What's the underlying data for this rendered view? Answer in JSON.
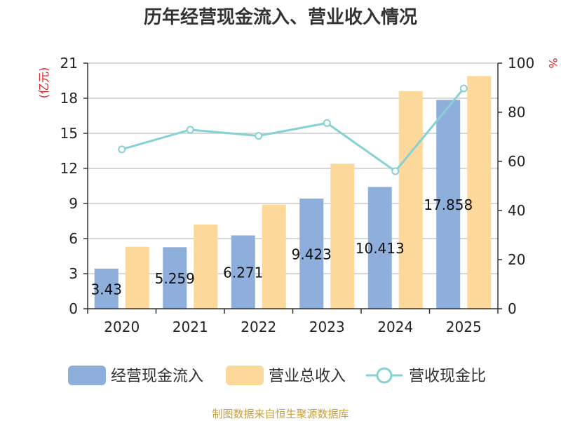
{
  "chart_data": {
    "type": "bar",
    "title": "历年经营现金流入、营业收入情况",
    "categories": [
      "2020",
      "2021",
      "2022",
      "2023",
      "2024",
      "2025"
    ],
    "y_left": {
      "unit_label": "(亿元)",
      "min": 0,
      "max": 21,
      "ticks": [
        "0",
        "3",
        "6",
        "9",
        "12",
        "15",
        "18",
        "21"
      ]
    },
    "y_right": {
      "unit_label": "%",
      "min": 0,
      "max": 100,
      "ticks": [
        "0",
        "20",
        "40",
        "60",
        "80",
        "100"
      ]
    },
    "series": [
      {
        "name": "经营现金流入",
        "type": "bar",
        "axis": "left",
        "color": "#8eaedb",
        "values": [
          3.43,
          5.259,
          6.271,
          9.423,
          10.413,
          17.858
        ],
        "labels": [
          "3.43",
          "5.259",
          "6.271",
          "9.423",
          "10.413",
          "17.858"
        ]
      },
      {
        "name": "营业总收入",
        "type": "bar",
        "axis": "left",
        "color": "#fdd89b",
        "values": [
          5.3,
          7.2,
          8.9,
          12.4,
          18.6,
          19.9
        ]
      },
      {
        "name": "营收现金比",
        "type": "line",
        "axis": "right",
        "color": "#86d1d4",
        "values": [
          64.9,
          72.9,
          70.4,
          75.6,
          56.0,
          89.7
        ]
      }
    ],
    "legend_position": "bottom",
    "grid": true
  },
  "footer": {
    "source": "制图数据来自恒生聚源数据库"
  }
}
